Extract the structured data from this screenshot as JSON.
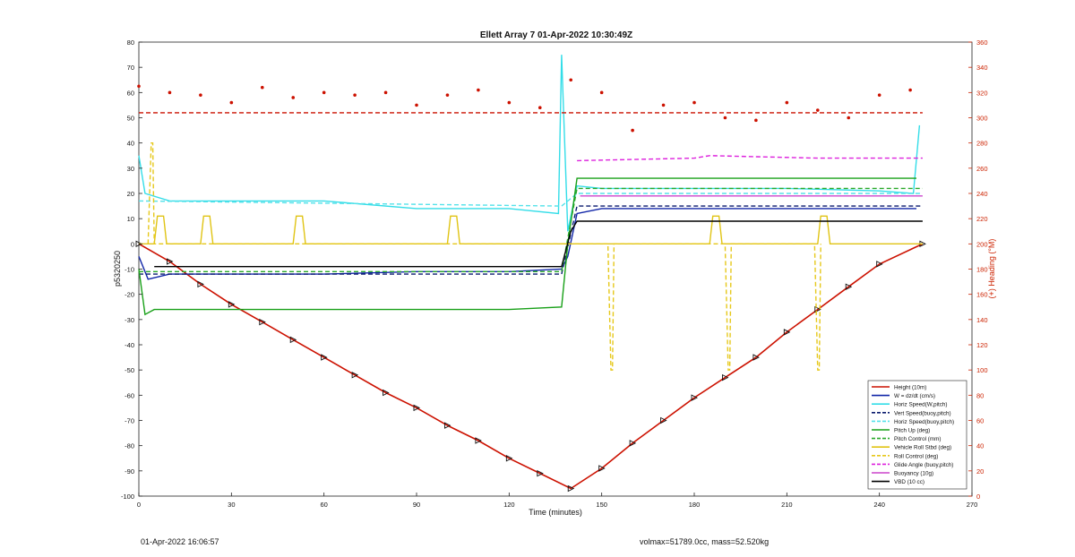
{
  "footer": {
    "left": "01-Apr-2022 16:06:57",
    "right": "volmax=51789.0cc, mass=52.520kg"
  },
  "chart_data": {
    "type": "line",
    "title": "Ellett Array 7 01-Apr-2022 10:30:49Z",
    "xlabel": "Time (minutes)",
    "ylabel": "p5320250",
    "ylabel_right": "(+) Heading (°M)",
    "xlim": [
      0,
      270
    ],
    "ylim": [
      -100,
      80
    ],
    "ylim_right": [
      0,
      360
    ],
    "xticks": [
      0,
      30,
      60,
      90,
      120,
      150,
      180,
      210,
      240,
      270
    ],
    "yticks": [
      80,
      70,
      60,
      50,
      40,
      30,
      20,
      10,
      0,
      -10,
      -20,
      -30,
      -40,
      -50,
      -60,
      -70,
      -80,
      -90,
      -100
    ],
    "yticks_right": [
      0,
      20,
      40,
      60,
      80,
      100,
      120,
      140,
      160,
      180,
      200,
      220,
      240,
      260,
      280,
      300,
      320,
      340,
      360
    ],
    "grid": false,
    "legend_position": "bottom-right",
    "right_axis_color": "#cc2200",
    "series": [
      {
        "name": "Height (10m)",
        "color": "#cc1100",
        "style": "solid",
        "x": [
          0,
          10,
          20,
          30,
          40,
          50,
          60,
          70,
          80,
          90,
          100,
          110,
          120,
          130,
          140,
          150,
          160,
          170,
          180,
          190,
          200,
          210,
          220,
          230,
          240,
          254
        ],
        "y": [
          0,
          -7,
          -16,
          -24,
          -31,
          -38,
          -45,
          -52,
          -59,
          -65,
          -72,
          -78,
          -85,
          -91,
          -97,
          -89,
          -79,
          -70,
          -61,
          -53,
          -45,
          -35,
          -26,
          -17,
          -8,
          0
        ]
      },
      {
        "name": "W = dz/dt (cm/s)",
        "color": "#1126a8",
        "style": "solid",
        "x": [
          0,
          3,
          10,
          30,
          60,
          90,
          120,
          137,
          139,
          142,
          150,
          180,
          210,
          240,
          252
        ],
        "y": [
          -5,
          -14,
          -12,
          -12,
          -12,
          -11,
          -11,
          -10,
          -5,
          12,
          14,
          14,
          14,
          14,
          14
        ]
      },
      {
        "name": "Horiz Speed(W,pitch)",
        "color": "#33dde8",
        "style": "solid",
        "x": [
          0,
          2,
          10,
          30,
          60,
          90,
          120,
          136,
          137,
          139,
          142,
          150,
          180,
          210,
          240,
          251,
          253
        ],
        "y": [
          35,
          20,
          17,
          17,
          17,
          14,
          14,
          12,
          75,
          5,
          23,
          22,
          22,
          22,
          21,
          20,
          47
        ]
      },
      {
        "name": "Vert Speed(buoy,pitch)",
        "color": "#0a1a6e",
        "style": "dashed",
        "x": [
          0,
          137,
          142,
          254
        ],
        "y": [
          -12,
          -12,
          15,
          15
        ]
      },
      {
        "name": "Horiz Speed(buoy,pitch)",
        "color": "#55e2ea",
        "style": "dashed",
        "x": [
          0,
          137,
          142,
          254
        ],
        "y": [
          17,
          15,
          20,
          20
        ]
      },
      {
        "name": "Pitch Up (deg)",
        "color": "#18a018",
        "style": "solid",
        "x": [
          0,
          2,
          5,
          30,
          60,
          90,
          120,
          137,
          139,
          142,
          150,
          180,
          210,
          240,
          252
        ],
        "y": [
          -10,
          -28,
          -26,
          -26,
          -26,
          -26,
          -26,
          -25,
          0,
          26,
          26,
          26,
          26,
          26,
          26
        ]
      },
      {
        "name": "Pitch Control (mm)",
        "color": "#29a829",
        "style": "dashed",
        "x": [
          0,
          137,
          142,
          254
        ],
        "y": [
          -11,
          -11,
          22,
          22
        ]
      },
      {
        "name": "Vehicle Roll Stbd (deg)",
        "color": "#e0c414",
        "style": "solid",
        "x": [
          0,
          5,
          6,
          8,
          9,
          20,
          21,
          23,
          24,
          50,
          51,
          53,
          54,
          100,
          101,
          103,
          104,
          137,
          140,
          160,
          185,
          186,
          188,
          189,
          220,
          221,
          223,
          224,
          250,
          254
        ],
        "y": [
          0,
          0,
          11,
          11,
          0,
          0,
          11,
          11,
          0,
          0,
          11,
          11,
          0,
          0,
          11,
          11,
          0,
          0,
          0,
          0,
          0,
          11,
          11,
          0,
          0,
          11,
          11,
          0,
          0,
          0
        ]
      },
      {
        "name": "Roll Control (deg)",
        "color": "#e6c81a",
        "style": "dashed",
        "x": [
          3,
          4,
          4.5,
          5,
          152,
          153,
          153.5,
          154,
          190,
          191,
          191.5,
          192,
          219,
          220,
          220.5,
          221
        ],
        "y": [
          0,
          40,
          40,
          0,
          0,
          -50,
          -50,
          0,
          0,
          -50,
          -50,
          0,
          0,
          -50,
          -50,
          0
        ]
      },
      {
        "name": "Glide Angle (buoy,pitch)",
        "color": "#dd22dd",
        "style": "dashed",
        "x": [
          142,
          180,
          185,
          220,
          254
        ],
        "y": [
          33,
          34,
          35,
          34,
          34
        ]
      },
      {
        "name": "Buoyancy (10g)",
        "color": "#cc44cc",
        "style": "solid",
        "x": [
          143,
          254
        ],
        "y": [
          19,
          19
        ]
      },
      {
        "name": "VBD (10 cc)",
        "color": "#000000",
        "style": "solid",
        "x": [
          5,
          137,
          140,
          142,
          254
        ],
        "y": [
          -9,
          -9,
          5,
          9,
          9
        ]
      },
      {
        "name": "",
        "color": "#cc1100",
        "style": "dots",
        "axis": "right",
        "x": [
          0,
          10,
          20,
          30,
          40,
          50,
          60,
          70,
          80,
          90,
          100,
          110,
          120,
          130,
          140,
          150,
          160,
          170,
          180,
          190,
          200,
          210,
          220,
          230,
          240,
          250
        ],
        "y": [
          325,
          320,
          318,
          312,
          324,
          316,
          320,
          318,
          320,
          310,
          318,
          322,
          312,
          308,
          330,
          320,
          290,
          310,
          312,
          300,
          298,
          312,
          306,
          300,
          318,
          322
        ]
      },
      {
        "name": "",
        "color": "#cc1100",
        "style": "dashed",
        "axis": "right",
        "x": [
          0,
          254
        ],
        "y": [
          304,
          304
        ]
      }
    ]
  }
}
